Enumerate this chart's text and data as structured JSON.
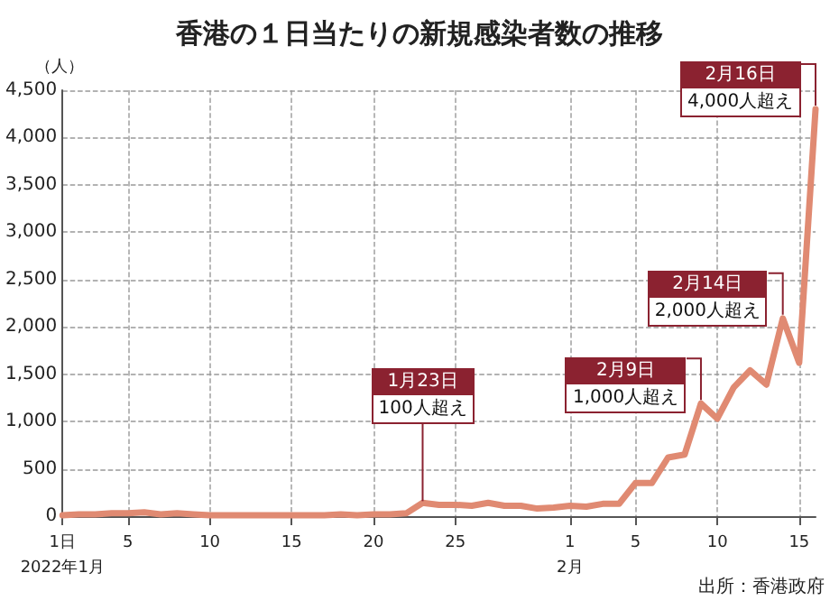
{
  "chart_data": {
    "type": "line",
    "title": "香港の１日当たりの新規感染者数の推移",
    "ylabel": "（人）",
    "x": [
      "2022-01-01",
      "2022-01-02",
      "2022-01-03",
      "2022-01-04",
      "2022-01-05",
      "2022-01-06",
      "2022-01-07",
      "2022-01-08",
      "2022-01-09",
      "2022-01-10",
      "2022-01-11",
      "2022-01-12",
      "2022-01-13",
      "2022-01-14",
      "2022-01-15",
      "2022-01-16",
      "2022-01-17",
      "2022-01-18",
      "2022-01-19",
      "2022-01-20",
      "2022-01-21",
      "2022-01-22",
      "2022-01-23",
      "2022-01-24",
      "2022-01-25",
      "2022-01-26",
      "2022-01-27",
      "2022-01-28",
      "2022-01-29",
      "2022-01-30",
      "2022-01-31",
      "2022-02-01",
      "2022-02-02",
      "2022-02-03",
      "2022-02-04",
      "2022-02-05",
      "2022-02-06",
      "2022-02-07",
      "2022-02-08",
      "2022-02-09",
      "2022-02-10",
      "2022-02-11",
      "2022-02-12",
      "2022-02-13",
      "2022-02-14",
      "2022-02-15",
      "2022-02-16"
    ],
    "series": [
      {
        "color": "#e08a72",
        "values": [
          10,
          20,
          20,
          30,
          30,
          40,
          20,
          30,
          20,
          10,
          10,
          10,
          10,
          10,
          10,
          10,
          10,
          20,
          10,
          20,
          20,
          30,
          140,
          120,
          120,
          110,
          140,
          110,
          110,
          80,
          90,
          110,
          100,
          130,
          130,
          350,
          350,
          620,
          650,
          1190,
          1030,
          1360,
          1540,
          1390,
          2090,
          1620,
          4300
        ]
      }
    ],
    "xlim": [
      "2022-01-01",
      "2022-02-16"
    ],
    "xticks": [
      {
        "value": "2022-01-01",
        "label": "1日\n2022年1月"
      },
      {
        "value": "2022-01-05",
        "label": "5"
      },
      {
        "value": "2022-01-10",
        "label": "10"
      },
      {
        "value": "2022-01-15",
        "label": "15"
      },
      {
        "value": "2022-01-20",
        "label": "20"
      },
      {
        "value": "2022-01-25",
        "label": "25"
      },
      {
        "value": "2022-02-01",
        "label": "1\n2月"
      },
      {
        "value": "2022-02-05",
        "label": "5"
      },
      {
        "value": "2022-02-10",
        "label": "10"
      },
      {
        "value": "2022-02-15",
        "label": "15"
      }
    ],
    "ylim": [
      0,
      4500
    ],
    "yticks": [
      {
        "value": 0,
        "label": "0"
      },
      {
        "value": 500,
        "label": "500"
      },
      {
        "value": 1000,
        "label": "1,000"
      },
      {
        "value": 1500,
        "label": "1,500"
      },
      {
        "value": 2000,
        "label": "2,000"
      },
      {
        "value": 2500,
        "label": "2,500"
      },
      {
        "value": 3000,
        "label": "3,000"
      },
      {
        "value": 3500,
        "label": "3,500"
      },
      {
        "value": 4000,
        "label": "4,000"
      },
      {
        "value": 4500,
        "label": "4,500"
      }
    ],
    "grid": true,
    "marker": "none",
    "line_style": "solid",
    "annotations": [
      {
        "text": "1月23日\n100人超え",
        "x": "2022-01-23",
        "y": 140
      },
      {
        "text": "2月9日\n1,000人超え",
        "x": "2022-02-09",
        "y": 1190
      },
      {
        "text": "2月14日\n2,000人超え",
        "x": "2022-02-14",
        "y": 2090
      },
      {
        "text": "2月16日\n4,000人超え",
        "x": "2022-02-16",
        "y": 4300
      },
      "出所：香港政府"
    ]
  }
}
